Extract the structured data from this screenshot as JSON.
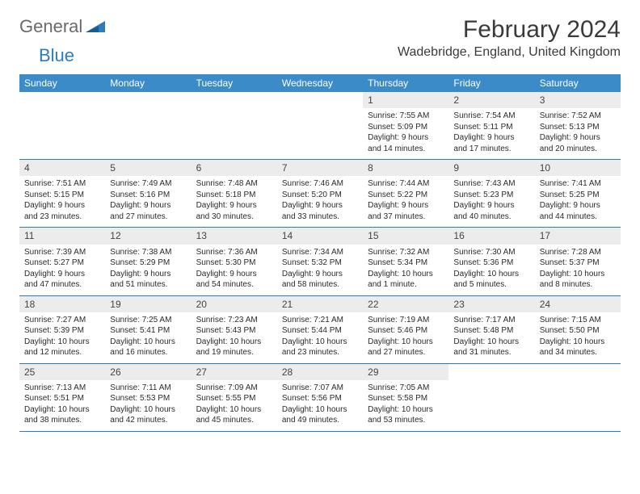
{
  "logo": {
    "text1": "General",
    "text2": "Blue"
  },
  "title": "February 2024",
  "location": "Wadebridge, England, United Kingdom",
  "colors": {
    "header_bg": "#3b8bc8",
    "header_text": "#ffffff",
    "daynum_bg": "#ececec",
    "border": "#2d7cc0",
    "logo_gray": "#6a6a6a",
    "logo_blue": "#2d7cc0"
  },
  "weekdays": [
    "Sunday",
    "Monday",
    "Tuesday",
    "Wednesday",
    "Thursday",
    "Friday",
    "Saturday"
  ],
  "weeks": [
    [
      null,
      null,
      null,
      null,
      {
        "d": "1",
        "sr": "7:55 AM",
        "ss": "5:09 PM",
        "dl": "9 hours and 14 minutes."
      },
      {
        "d": "2",
        "sr": "7:54 AM",
        "ss": "5:11 PM",
        "dl": "9 hours and 17 minutes."
      },
      {
        "d": "3",
        "sr": "7:52 AM",
        "ss": "5:13 PM",
        "dl": "9 hours and 20 minutes."
      }
    ],
    [
      {
        "d": "4",
        "sr": "7:51 AM",
        "ss": "5:15 PM",
        "dl": "9 hours and 23 minutes."
      },
      {
        "d": "5",
        "sr": "7:49 AM",
        "ss": "5:16 PM",
        "dl": "9 hours and 27 minutes."
      },
      {
        "d": "6",
        "sr": "7:48 AM",
        "ss": "5:18 PM",
        "dl": "9 hours and 30 minutes."
      },
      {
        "d": "7",
        "sr": "7:46 AM",
        "ss": "5:20 PM",
        "dl": "9 hours and 33 minutes."
      },
      {
        "d": "8",
        "sr": "7:44 AM",
        "ss": "5:22 PM",
        "dl": "9 hours and 37 minutes."
      },
      {
        "d": "9",
        "sr": "7:43 AM",
        "ss": "5:23 PM",
        "dl": "9 hours and 40 minutes."
      },
      {
        "d": "10",
        "sr": "7:41 AM",
        "ss": "5:25 PM",
        "dl": "9 hours and 44 minutes."
      }
    ],
    [
      {
        "d": "11",
        "sr": "7:39 AM",
        "ss": "5:27 PM",
        "dl": "9 hours and 47 minutes."
      },
      {
        "d": "12",
        "sr": "7:38 AM",
        "ss": "5:29 PM",
        "dl": "9 hours and 51 minutes."
      },
      {
        "d": "13",
        "sr": "7:36 AM",
        "ss": "5:30 PM",
        "dl": "9 hours and 54 minutes."
      },
      {
        "d": "14",
        "sr": "7:34 AM",
        "ss": "5:32 PM",
        "dl": "9 hours and 58 minutes."
      },
      {
        "d": "15",
        "sr": "7:32 AM",
        "ss": "5:34 PM",
        "dl": "10 hours and 1 minute."
      },
      {
        "d": "16",
        "sr": "7:30 AM",
        "ss": "5:36 PM",
        "dl": "10 hours and 5 minutes."
      },
      {
        "d": "17",
        "sr": "7:28 AM",
        "ss": "5:37 PM",
        "dl": "10 hours and 8 minutes."
      }
    ],
    [
      {
        "d": "18",
        "sr": "7:27 AM",
        "ss": "5:39 PM",
        "dl": "10 hours and 12 minutes."
      },
      {
        "d": "19",
        "sr": "7:25 AM",
        "ss": "5:41 PM",
        "dl": "10 hours and 16 minutes."
      },
      {
        "d": "20",
        "sr": "7:23 AM",
        "ss": "5:43 PM",
        "dl": "10 hours and 19 minutes."
      },
      {
        "d": "21",
        "sr": "7:21 AM",
        "ss": "5:44 PM",
        "dl": "10 hours and 23 minutes."
      },
      {
        "d": "22",
        "sr": "7:19 AM",
        "ss": "5:46 PM",
        "dl": "10 hours and 27 minutes."
      },
      {
        "d": "23",
        "sr": "7:17 AM",
        "ss": "5:48 PM",
        "dl": "10 hours and 31 minutes."
      },
      {
        "d": "24",
        "sr": "7:15 AM",
        "ss": "5:50 PM",
        "dl": "10 hours and 34 minutes."
      }
    ],
    [
      {
        "d": "25",
        "sr": "7:13 AM",
        "ss": "5:51 PM",
        "dl": "10 hours and 38 minutes."
      },
      {
        "d": "26",
        "sr": "7:11 AM",
        "ss": "5:53 PM",
        "dl": "10 hours and 42 minutes."
      },
      {
        "d": "27",
        "sr": "7:09 AM",
        "ss": "5:55 PM",
        "dl": "10 hours and 45 minutes."
      },
      {
        "d": "28",
        "sr": "7:07 AM",
        "ss": "5:56 PM",
        "dl": "10 hours and 49 minutes."
      },
      {
        "d": "29",
        "sr": "7:05 AM",
        "ss": "5:58 PM",
        "dl": "10 hours and 53 minutes."
      },
      null,
      null
    ]
  ],
  "labels": {
    "sunrise": "Sunrise:",
    "sunset": "Sunset:",
    "daylight": "Daylight:"
  }
}
